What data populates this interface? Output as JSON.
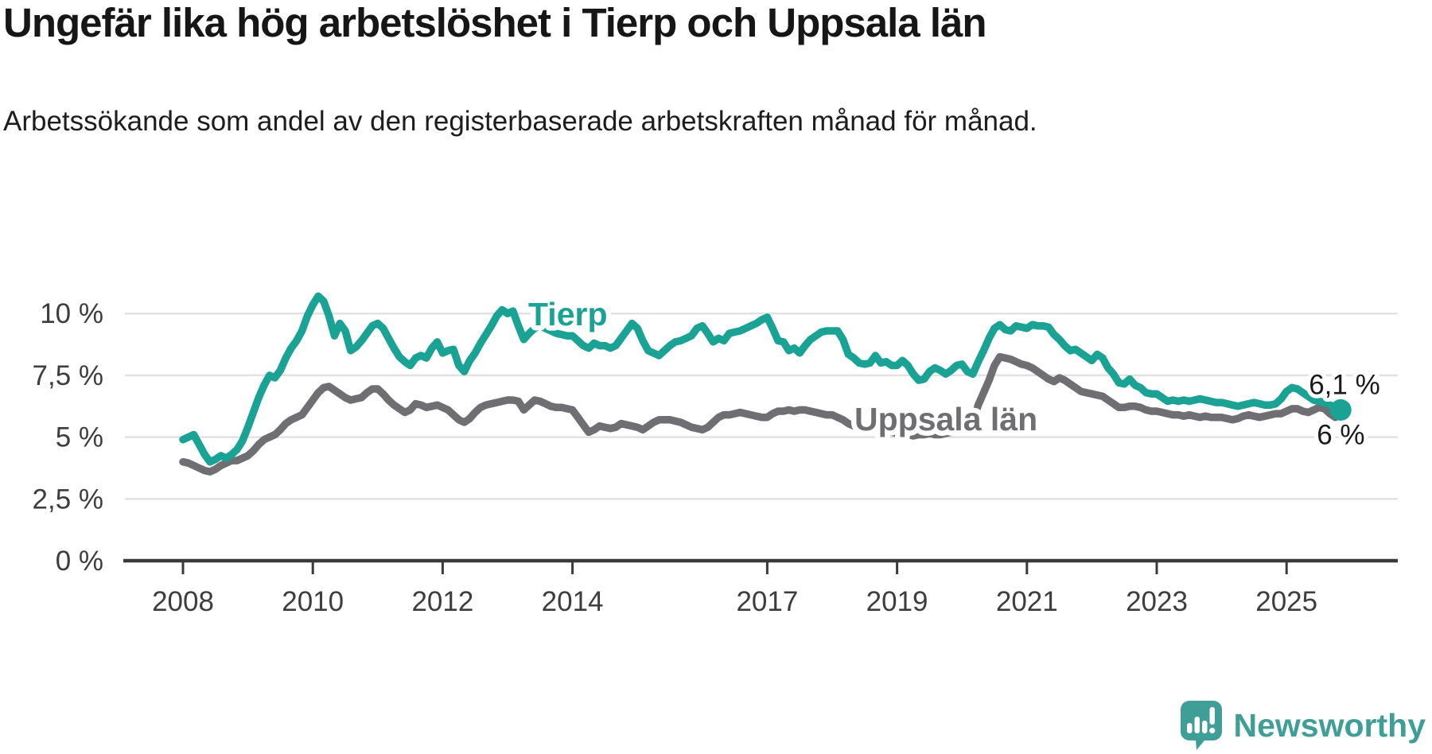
{
  "header": {
    "title": "Ungefär lika hög arbetslöshet i Tierp och Uppsala län",
    "subtitle": "Arbetssökande som andel av den registerbaserade arbetskraften månad för månad."
  },
  "chart_data": {
    "type": "line",
    "title": "Ungefär lika hög arbetslöshet i Tierp och Uppsala län",
    "subtitle": "Arbetssökande som andel av den registerbaserade arbetskraften månad för månad.",
    "unit": "%",
    "grid": "horizontal",
    "legend_position": "inline-labels-on-lines",
    "x_start": "2008-01",
    "x_end": "2025-11",
    "x_tick_years": [
      2008,
      2010,
      2012,
      2014,
      2017,
      2019,
      2021,
      2023,
      2025
    ],
    "x_tick_labels": [
      "2008",
      "2010",
      "2012",
      "2014",
      "2017",
      "2019",
      "2021",
      "2023",
      "2025"
    ],
    "y_ticks": [
      0,
      2.5,
      5,
      7.5,
      10
    ],
    "y_tick_labels": [
      "0 %",
      "2,5 %",
      "5 %",
      "7,5 %",
      "10 %"
    ],
    "ylim": [
      0,
      11.3
    ],
    "series": [
      {
        "name": "Tierp",
        "color": "#1aa394",
        "end_label": "6,1 %",
        "last_value": 6.1,
        "values": [
          4.9,
          5.0,
          5.1,
          4.7,
          4.3,
          4.0,
          4.1,
          4.25,
          4.15,
          4.3,
          4.5,
          4.85,
          5.4,
          6.0,
          6.6,
          7.1,
          7.5,
          7.4,
          7.7,
          8.2,
          8.6,
          8.9,
          9.3,
          9.9,
          10.35,
          10.7,
          10.5,
          9.9,
          9.1,
          9.6,
          9.3,
          8.5,
          8.65,
          8.9,
          9.2,
          9.5,
          9.6,
          9.4,
          9.0,
          8.6,
          8.25,
          8.05,
          7.9,
          8.2,
          8.3,
          8.2,
          8.6,
          8.85,
          8.4,
          8.5,
          8.55,
          7.9,
          7.65,
          8.1,
          8.4,
          8.8,
          9.15,
          9.5,
          9.9,
          10.15,
          10.0,
          10.1,
          9.5,
          8.95,
          9.2,
          9.4,
          9.5,
          9.4,
          9.3,
          9.2,
          9.15,
          9.1,
          9.1,
          8.9,
          8.7,
          8.6,
          8.8,
          8.7,
          8.7,
          8.6,
          8.7,
          9.0,
          9.3,
          9.6,
          9.4,
          8.9,
          8.5,
          8.4,
          8.3,
          8.5,
          8.7,
          8.85,
          8.9,
          9.0,
          9.1,
          9.4,
          9.5,
          9.2,
          8.85,
          9.0,
          8.9,
          9.2,
          9.25,
          9.3,
          9.4,
          9.5,
          9.6,
          9.75,
          9.85,
          9.4,
          8.9,
          8.85,
          8.5,
          8.6,
          8.4,
          8.7,
          8.95,
          9.1,
          9.25,
          9.3,
          9.3,
          9.3,
          8.95,
          8.35,
          8.2,
          8.0,
          7.95,
          8.0,
          8.3,
          8.0,
          8.05,
          7.9,
          7.9,
          8.1,
          7.9,
          7.55,
          7.3,
          7.35,
          7.65,
          7.8,
          7.7,
          7.55,
          7.7,
          7.9,
          7.95,
          7.65,
          7.55,
          8.05,
          8.5,
          9.0,
          9.4,
          9.55,
          9.35,
          9.3,
          9.5,
          9.45,
          9.4,
          9.55,
          9.5,
          9.5,
          9.45,
          9.15,
          8.95,
          8.7,
          8.5,
          8.55,
          8.4,
          8.25,
          8.1,
          8.35,
          8.2,
          7.8,
          7.55,
          7.2,
          7.15,
          7.35,
          7.1,
          7.0,
          6.8,
          6.75,
          6.75,
          6.6,
          6.45,
          6.5,
          6.45,
          6.5,
          6.45,
          6.5,
          6.55,
          6.5,
          6.45,
          6.4,
          6.4,
          6.35,
          6.3,
          6.25,
          6.3,
          6.35,
          6.4,
          6.35,
          6.3,
          6.3,
          6.35,
          6.55,
          6.85,
          7.0,
          6.95,
          6.8,
          6.65,
          6.5,
          6.45,
          6.4,
          6.3,
          6.2,
          6.1
        ]
      },
      {
        "name": "Uppsala län",
        "color": "#6e6e73",
        "end_label": "6 %",
        "last_value": 6.0,
        "values": [
          4.0,
          3.95,
          3.85,
          3.75,
          3.65,
          3.6,
          3.7,
          3.85,
          3.95,
          4.05,
          4.05,
          4.15,
          4.25,
          4.45,
          4.7,
          4.9,
          5.0,
          5.1,
          5.3,
          5.55,
          5.7,
          5.8,
          5.9,
          6.2,
          6.5,
          6.8,
          7.0,
          7.05,
          6.9,
          6.75,
          6.6,
          6.5,
          6.55,
          6.6,
          6.8,
          6.95,
          6.95,
          6.75,
          6.5,
          6.3,
          6.15,
          6.0,
          6.1,
          6.35,
          6.3,
          6.2,
          6.25,
          6.3,
          6.2,
          6.1,
          5.9,
          5.7,
          5.6,
          5.75,
          6.0,
          6.2,
          6.3,
          6.35,
          6.4,
          6.45,
          6.5,
          6.5,
          6.45,
          6.1,
          6.3,
          6.5,
          6.45,
          6.35,
          6.25,
          6.2,
          6.2,
          6.15,
          6.1,
          5.8,
          5.5,
          5.2,
          5.3,
          5.45,
          5.4,
          5.35,
          5.4,
          5.55,
          5.5,
          5.45,
          5.4,
          5.3,
          5.45,
          5.6,
          5.7,
          5.7,
          5.7,
          5.65,
          5.6,
          5.5,
          5.4,
          5.35,
          5.3,
          5.4,
          5.6,
          5.8,
          5.9,
          5.9,
          5.95,
          6.0,
          5.95,
          5.9,
          5.85,
          5.8,
          5.8,
          5.95,
          6.05,
          6.05,
          6.1,
          6.05,
          6.1,
          6.1,
          6.05,
          6.0,
          5.95,
          5.9,
          5.9,
          5.8,
          5.7,
          5.55,
          5.45,
          5.4,
          5.35,
          5.3,
          5.3,
          5.25,
          5.2,
          5.2,
          5.15,
          5.1,
          5.1,
          5.05,
          5.1,
          5.1,
          5.15,
          5.1,
          5.1,
          5.15,
          5.2,
          5.3,
          5.4,
          5.35,
          5.6,
          6.3,
          6.8,
          7.3,
          7.9,
          8.25,
          8.2,
          8.15,
          8.05,
          7.95,
          7.9,
          7.8,
          7.65,
          7.5,
          7.35,
          7.25,
          7.4,
          7.3,
          7.15,
          7.0,
          6.85,
          6.8,
          6.75,
          6.7,
          6.65,
          6.5,
          6.35,
          6.2,
          6.2,
          6.25,
          6.25,
          6.2,
          6.1,
          6.05,
          6.05,
          6.0,
          5.95,
          5.9,
          5.9,
          5.85,
          5.9,
          5.85,
          5.8,
          5.85,
          5.8,
          5.8,
          5.8,
          5.75,
          5.7,
          5.75,
          5.85,
          5.9,
          5.85,
          5.8,
          5.85,
          5.9,
          5.95,
          5.95,
          6.05,
          6.15,
          6.15,
          6.05,
          6.0,
          6.1,
          6.2,
          6.15,
          5.95,
          5.8,
          6.0
        ]
      }
    ]
  },
  "footer": {
    "brand": "Newsworthy",
    "logo_icon": "newsworthy-speech-bubble-bar-chart-icon",
    "brand_color": "#3f9e96"
  },
  "colors": {
    "background": "#ffffff",
    "title_text": "#161616",
    "axis_text": "#3d3d3d",
    "gridline": "#e2e2e2",
    "axis_line": "#3a3a3a",
    "tierp_line": "#1aa394",
    "uppsala_line": "#6e6e73",
    "end_label_text": "#1a1a1a"
  }
}
